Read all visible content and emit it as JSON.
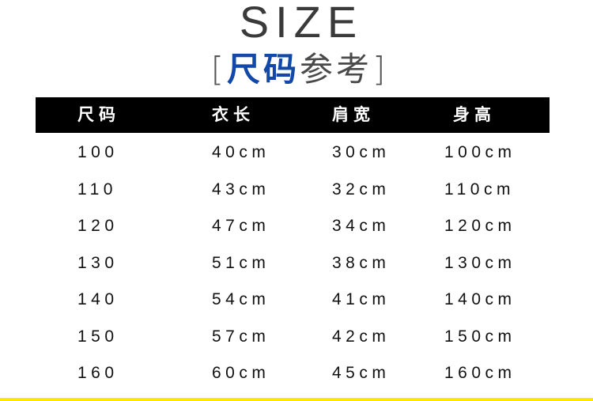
{
  "title": "SIZE",
  "subtitle": {
    "open": "[",
    "highlight": "尺码",
    "rest": "参考",
    "close": "]"
  },
  "table": {
    "headers": [
      "尺码",
      "衣长",
      "肩宽",
      "身高"
    ],
    "rows": [
      [
        "100",
        "40cm",
        "30cm",
        "100cm"
      ],
      [
        "110",
        "43cm",
        "32cm",
        "110cm"
      ],
      [
        "120",
        "47cm",
        "34cm",
        "120cm"
      ],
      [
        "130",
        "51cm",
        "38cm",
        "130cm"
      ],
      [
        "140",
        "54cm",
        "41cm",
        "140cm"
      ],
      [
        "150",
        "57cm",
        "42cm",
        "150cm"
      ],
      [
        "160",
        "60cm",
        "45cm",
        "160cm"
      ]
    ]
  },
  "colors": {
    "accent": "#1249a8",
    "header_bg": "#000000",
    "footer_line": "#ffe800"
  }
}
